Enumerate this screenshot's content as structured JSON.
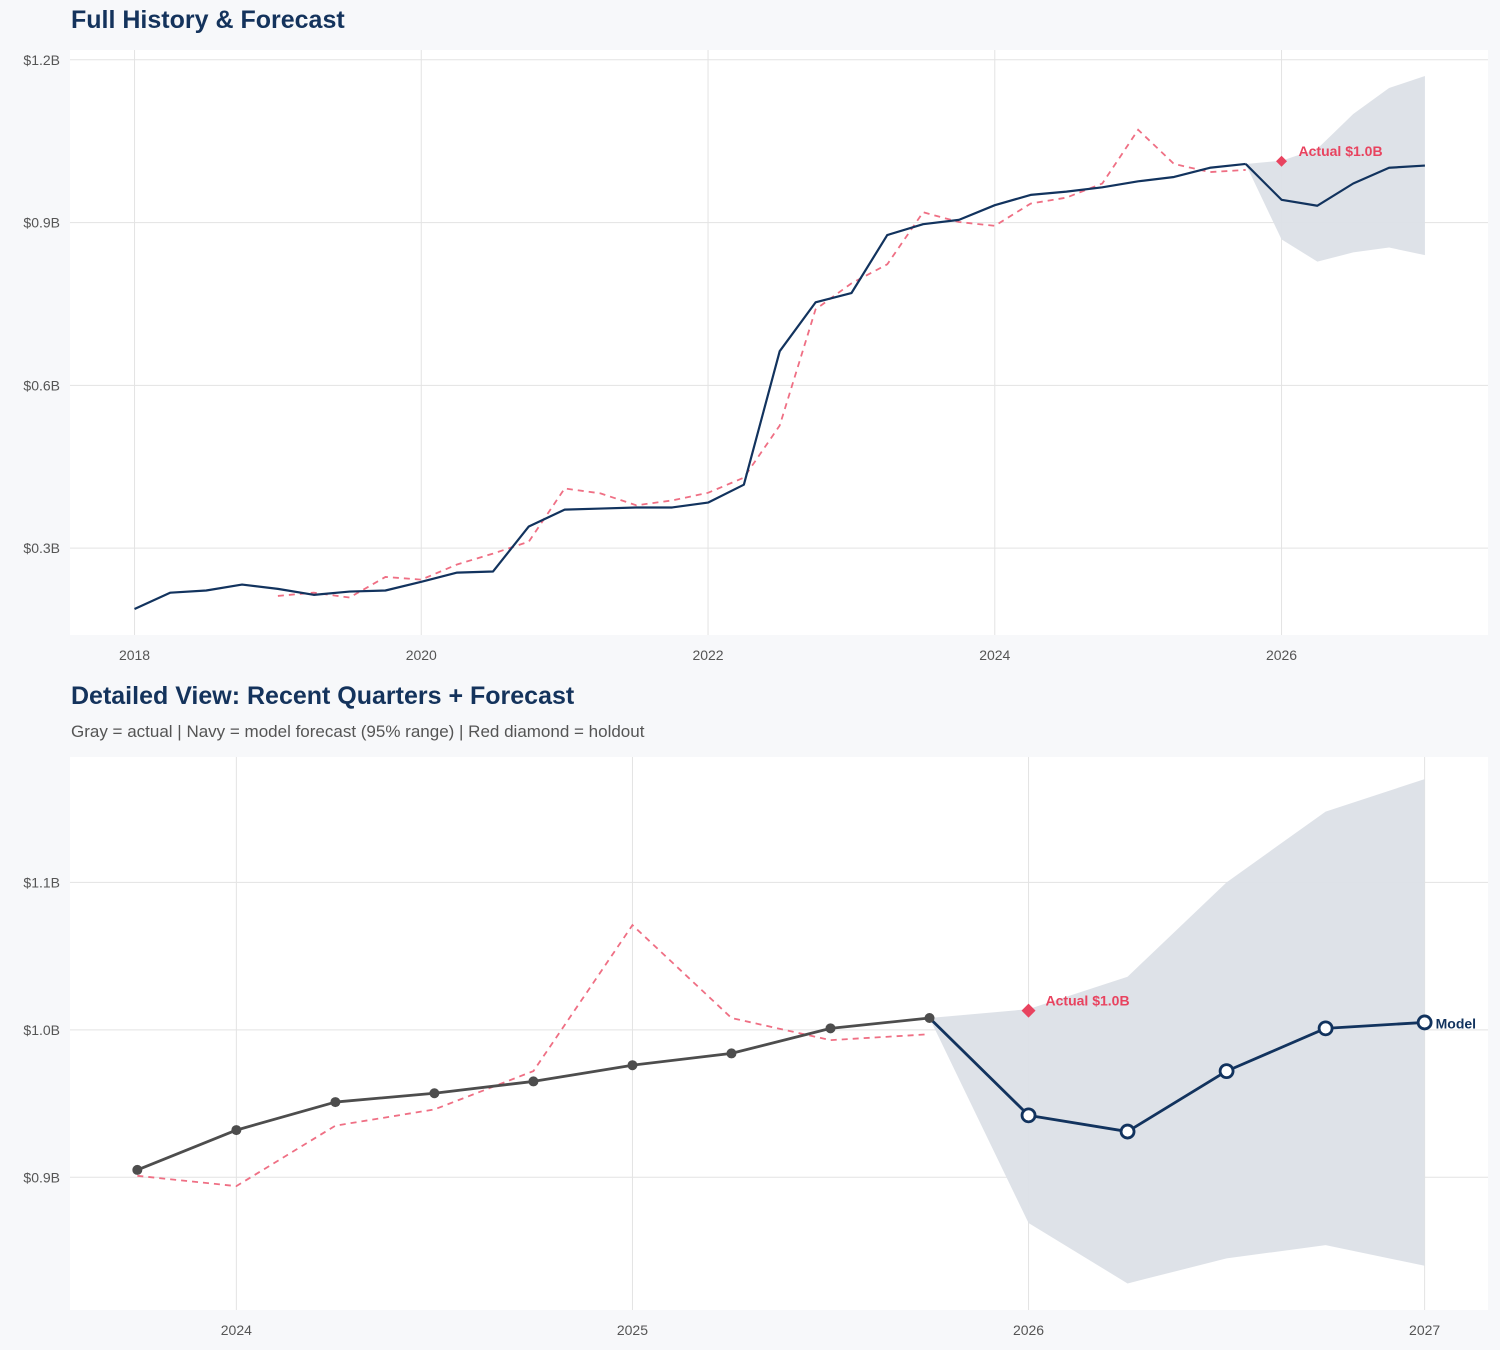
{
  "colors": {
    "actual_navy": "#12335e",
    "actual_gray": "#4d4d4d",
    "fitted_red": "#ef6f84",
    "holdout": "#e8435f",
    "band": "#dce0e7",
    "grid": "#e3e3e3"
  },
  "chart_data": [
    {
      "type": "line",
      "title": "Full History & Forecast",
      "xlim": [
        2017.55,
        2027.44
      ],
      "ylim": [
        0.14,
        1.218
      ],
      "x_ticks": [
        2018,
        2020,
        2022,
        2024,
        2026
      ],
      "x_tick_labels": [
        "2018",
        "2020",
        "2022",
        "2024",
        "2026"
      ],
      "y_ticks": [
        0.3,
        0.6,
        0.9,
        1.2
      ],
      "y_tick_labels": [
        "$0.3B",
        "$0.6B",
        "$0.9B",
        "$1.2B"
      ],
      "grid": true,
      "actual": {
        "x_start": 2018.0,
        "step": 0.25,
        "values": [
          0.188,
          0.218,
          0.222,
          0.233,
          0.225,
          0.214,
          0.22,
          0.222,
          0.238,
          0.255,
          0.257,
          0.34,
          0.371,
          0.373,
          0.375,
          0.375,
          0.384,
          0.417,
          0.663,
          0.753,
          0.77,
          0.877,
          0.897,
          0.905,
          0.932,
          0.951,
          0.957,
          0.965,
          0.976,
          0.984,
          1.001,
          1.008
        ]
      },
      "fitted": {
        "x_start": 2019.0,
        "step": 0.25,
        "values": [
          0.212,
          0.218,
          0.209,
          0.247,
          0.242,
          0.27,
          0.29,
          0.312,
          0.41,
          0.401,
          0.379,
          0.388,
          0.402,
          0.43,
          0.526,
          0.74,
          0.788,
          0.823,
          0.919,
          0.901,
          0.894,
          0.935,
          0.946,
          0.972,
          1.071,
          1.008,
          0.993,
          0.997
        ]
      },
      "forecast": {
        "x": [
          2026.0,
          2026.25,
          2026.5,
          2026.75,
          2027.0
        ],
        "values": [
          0.942,
          0.931,
          0.972,
          1.001,
          1.005
        ],
        "upper": [
          1.014,
          1.036,
          1.1,
          1.148,
          1.17
        ],
        "lower": [
          0.869,
          0.828,
          0.845,
          0.854,
          0.84
        ]
      },
      "holdout": {
        "x": 2026.0,
        "value": 1.013,
        "label": "Actual $1.0B"
      },
      "show_markers": false,
      "model_label": ""
    },
    {
      "type": "line",
      "title": "Detailed View: Recent Quarters + Forecast",
      "subtitle": "Gray = actual  |  Navy = model forecast (95% range)  |  Red diamond = holdout",
      "xlim": [
        2023.58,
        2027.16
      ],
      "ylim": [
        0.81,
        1.185
      ],
      "x_ticks": [
        2024,
        2025,
        2026,
        2027
      ],
      "x_tick_labels": [
        "2024",
        "2025",
        "2026",
        "2027"
      ],
      "y_ticks": [
        0.9,
        1.0,
        1.1
      ],
      "y_tick_labels": [
        "$0.9B",
        "$1.0B",
        "$1.1B"
      ],
      "grid": true,
      "actual": {
        "x_start": 2023.75,
        "step": 0.25,
        "values": [
          0.905,
          0.932,
          0.951,
          0.957,
          0.965,
          0.976,
          0.984,
          1.001,
          1.008
        ]
      },
      "fitted": {
        "x_start": 2023.75,
        "step": 0.25,
        "values": [
          0.901,
          0.894,
          0.935,
          0.946,
          0.972,
          1.071,
          1.008,
          0.993,
          0.997
        ]
      },
      "forecast": {
        "x": [
          2026.0,
          2026.25,
          2026.5,
          2026.75,
          2027.0
        ],
        "values": [
          0.942,
          0.931,
          0.972,
          1.001,
          1.005
        ],
        "upper": [
          1.014,
          1.036,
          1.1,
          1.148,
          1.17
        ],
        "lower": [
          0.869,
          0.828,
          0.845,
          0.854,
          0.84
        ]
      },
      "holdout": {
        "x": 2026.0,
        "value": 1.013,
        "label": "Actual $1.0B"
      },
      "show_markers": true,
      "model_label": "Model"
    }
  ]
}
